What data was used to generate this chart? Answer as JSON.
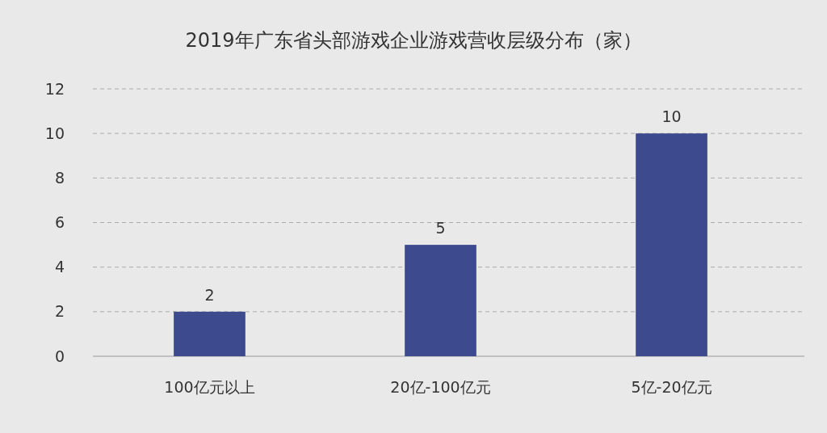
{
  "chart_data": {
    "type": "bar",
    "title": "2019年广东省头部游戏企业游戏营收层级分布（家）",
    "categories": [
      "100亿元以上",
      "20亿-100亿元",
      "5亿-20亿元"
    ],
    "values": [
      2,
      5,
      10
    ],
    "color": "#3d4a8e",
    "ylim": [
      0,
      12
    ],
    "yticks": [
      0,
      2,
      4,
      6,
      8,
      10,
      12
    ],
    "grid": "y",
    "data_labels": true
  }
}
